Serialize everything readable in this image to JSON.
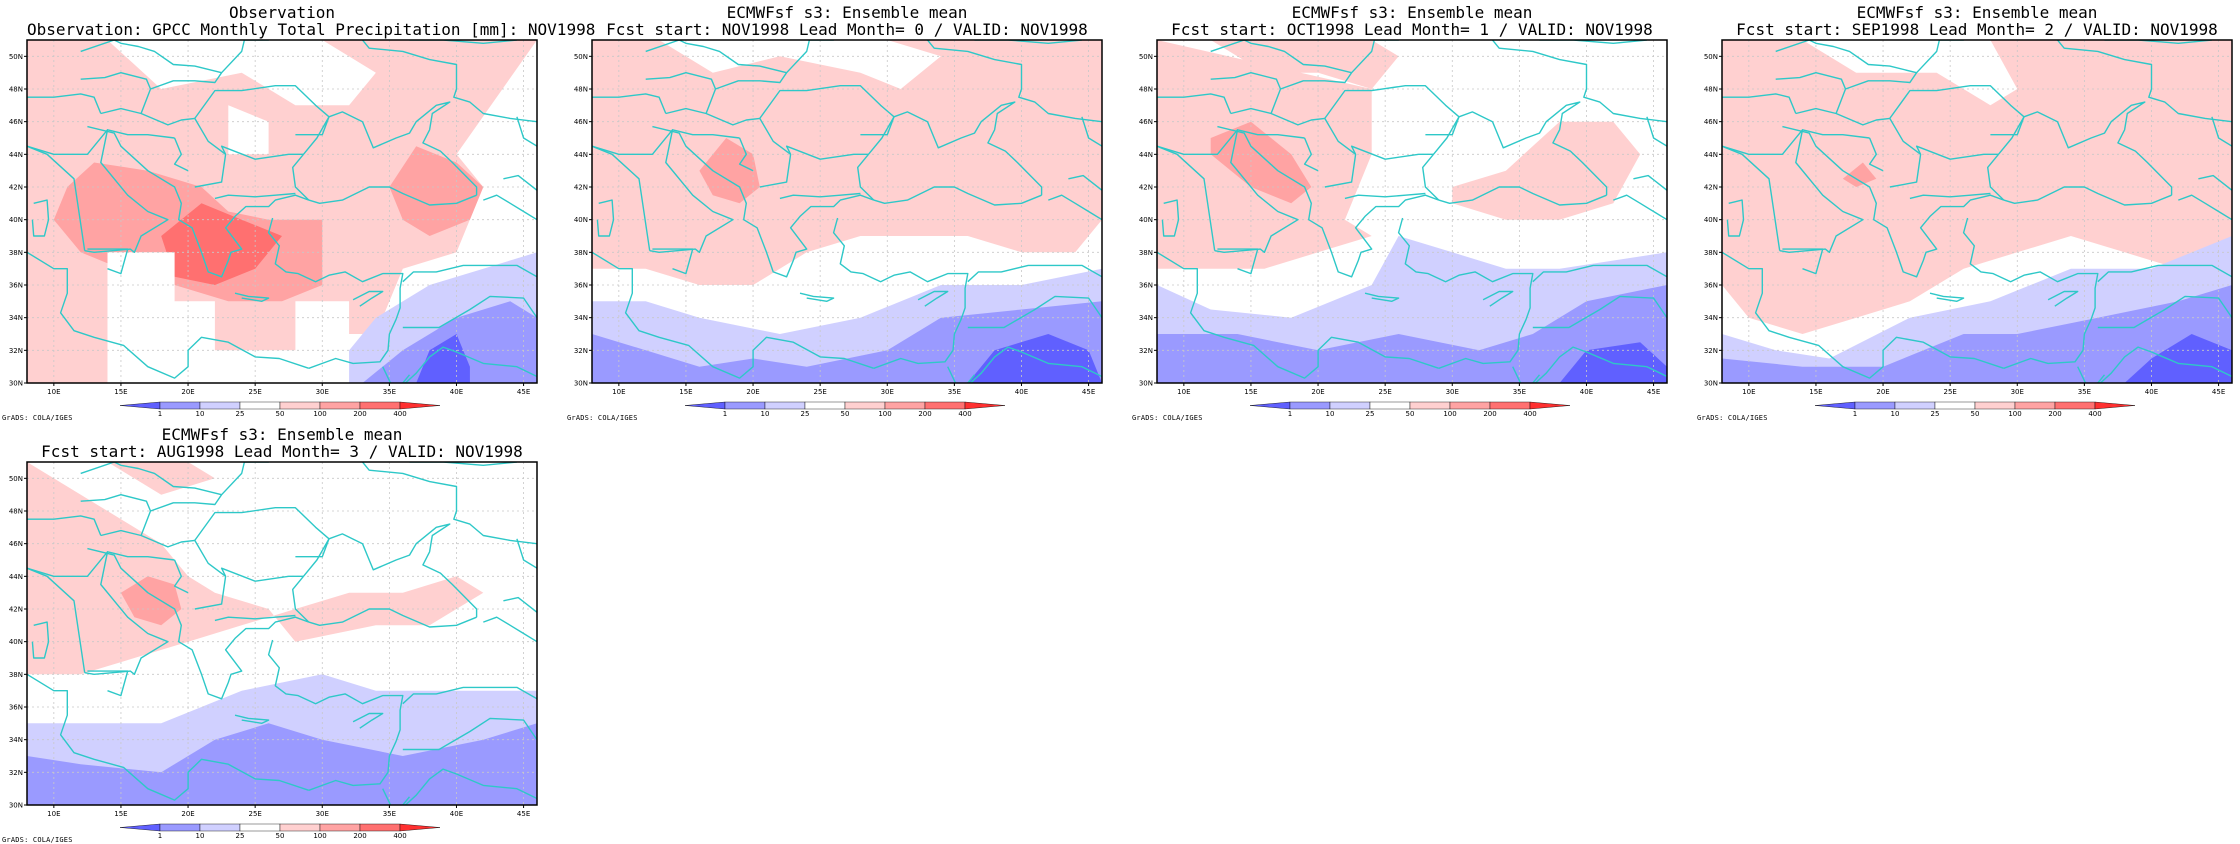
{
  "colors": {
    "coast": "#2ec8c8",
    "frame": "#000000",
    "gridline": "#c8c8c8",
    "shades": [
      "#6060ff",
      "#9a9aff",
      "#d0d0ff",
      "#ffffff",
      "#ffd0d0",
      "#ffa3a3",
      "#ff7070",
      "#ff3030"
    ]
  },
  "axes": {
    "lon_labels": [
      "10E",
      "15E",
      "20E",
      "25E",
      "30E",
      "35E",
      "40E",
      "45E"
    ],
    "lat_labels": [
      "30N",
      "32N",
      "34N",
      "36N",
      "38N",
      "40N",
      "42N",
      "44N",
      "46N",
      "48N",
      "50N"
    ]
  },
  "colorbar": {
    "labels": [
      "1",
      "10",
      "25",
      "50",
      "100",
      "200",
      "400"
    ]
  },
  "credit": "GrADS: COLA/IGES",
  "panels": [
    {
      "title1": "Observation",
      "title2": "Observation: GPCC Monthly Total Precipitation [mm]: NOV1998",
      "icon": "observation-map"
    },
    {
      "title1": "ECMWFsf s3: Ensemble mean",
      "title2": "Fcst start: NOV1998  Lead Month= 0 / VALID: NOV1998",
      "icon": "forecast-map"
    },
    {
      "title1": "ECMWFsf s3: Ensemble mean",
      "title2": "Fcst start: OCT1998  Lead Month= 1 / VALID: NOV1998",
      "icon": "forecast-map"
    },
    {
      "title1": "ECMWFsf s3: Ensemble mean",
      "title2": "Fcst start: SEP1998  Lead Month= 2 / VALID: NOV1998",
      "icon": "forecast-map"
    },
    {
      "title1": "ECMWFsf s3: Ensemble mean",
      "title2": "Fcst start: AUG1998  Lead Month= 3 / VALID: NOV1998",
      "icon": "forecast-map"
    }
  ]
}
